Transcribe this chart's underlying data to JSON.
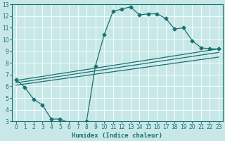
{
  "xlabel": "Humidex (Indice chaleur)",
  "xlim": [
    -0.5,
    23.5
  ],
  "ylim": [
    3,
    13
  ],
  "xticks": [
    0,
    1,
    2,
    3,
    4,
    5,
    6,
    7,
    8,
    9,
    10,
    11,
    12,
    13,
    14,
    15,
    16,
    17,
    18,
    19,
    20,
    21,
    22,
    23
  ],
  "yticks": [
    3,
    4,
    5,
    6,
    7,
    8,
    9,
    10,
    11,
    12,
    13
  ],
  "bg_color": "#c8e8e8",
  "line_color": "#1a7070",
  "curve_x": [
    0,
    1,
    2,
    3,
    4,
    5,
    6,
    7,
    8,
    9,
    10,
    11,
    12,
    13,
    14,
    15,
    16,
    17,
    18,
    19,
    20,
    21,
    22,
    23
  ],
  "curve_y": [
    6.6,
    5.9,
    4.9,
    4.4,
    3.2,
    3.2,
    2.9,
    2.8,
    3.0,
    7.7,
    10.4,
    12.4,
    12.6,
    12.8,
    12.1,
    12.2,
    12.2,
    11.8,
    10.9,
    11.0,
    9.9,
    9.3,
    9.2,
    9.2
  ],
  "line1_x": [
    0,
    23
  ],
  "line1_y": [
    6.5,
    9.2
  ],
  "line2_x": [
    0,
    23
  ],
  "line2_y": [
    6.3,
    8.9
  ],
  "line3_x": [
    0,
    23
  ],
  "line3_y": [
    6.1,
    8.5
  ],
  "marker": "D",
  "markersize": 2.5
}
